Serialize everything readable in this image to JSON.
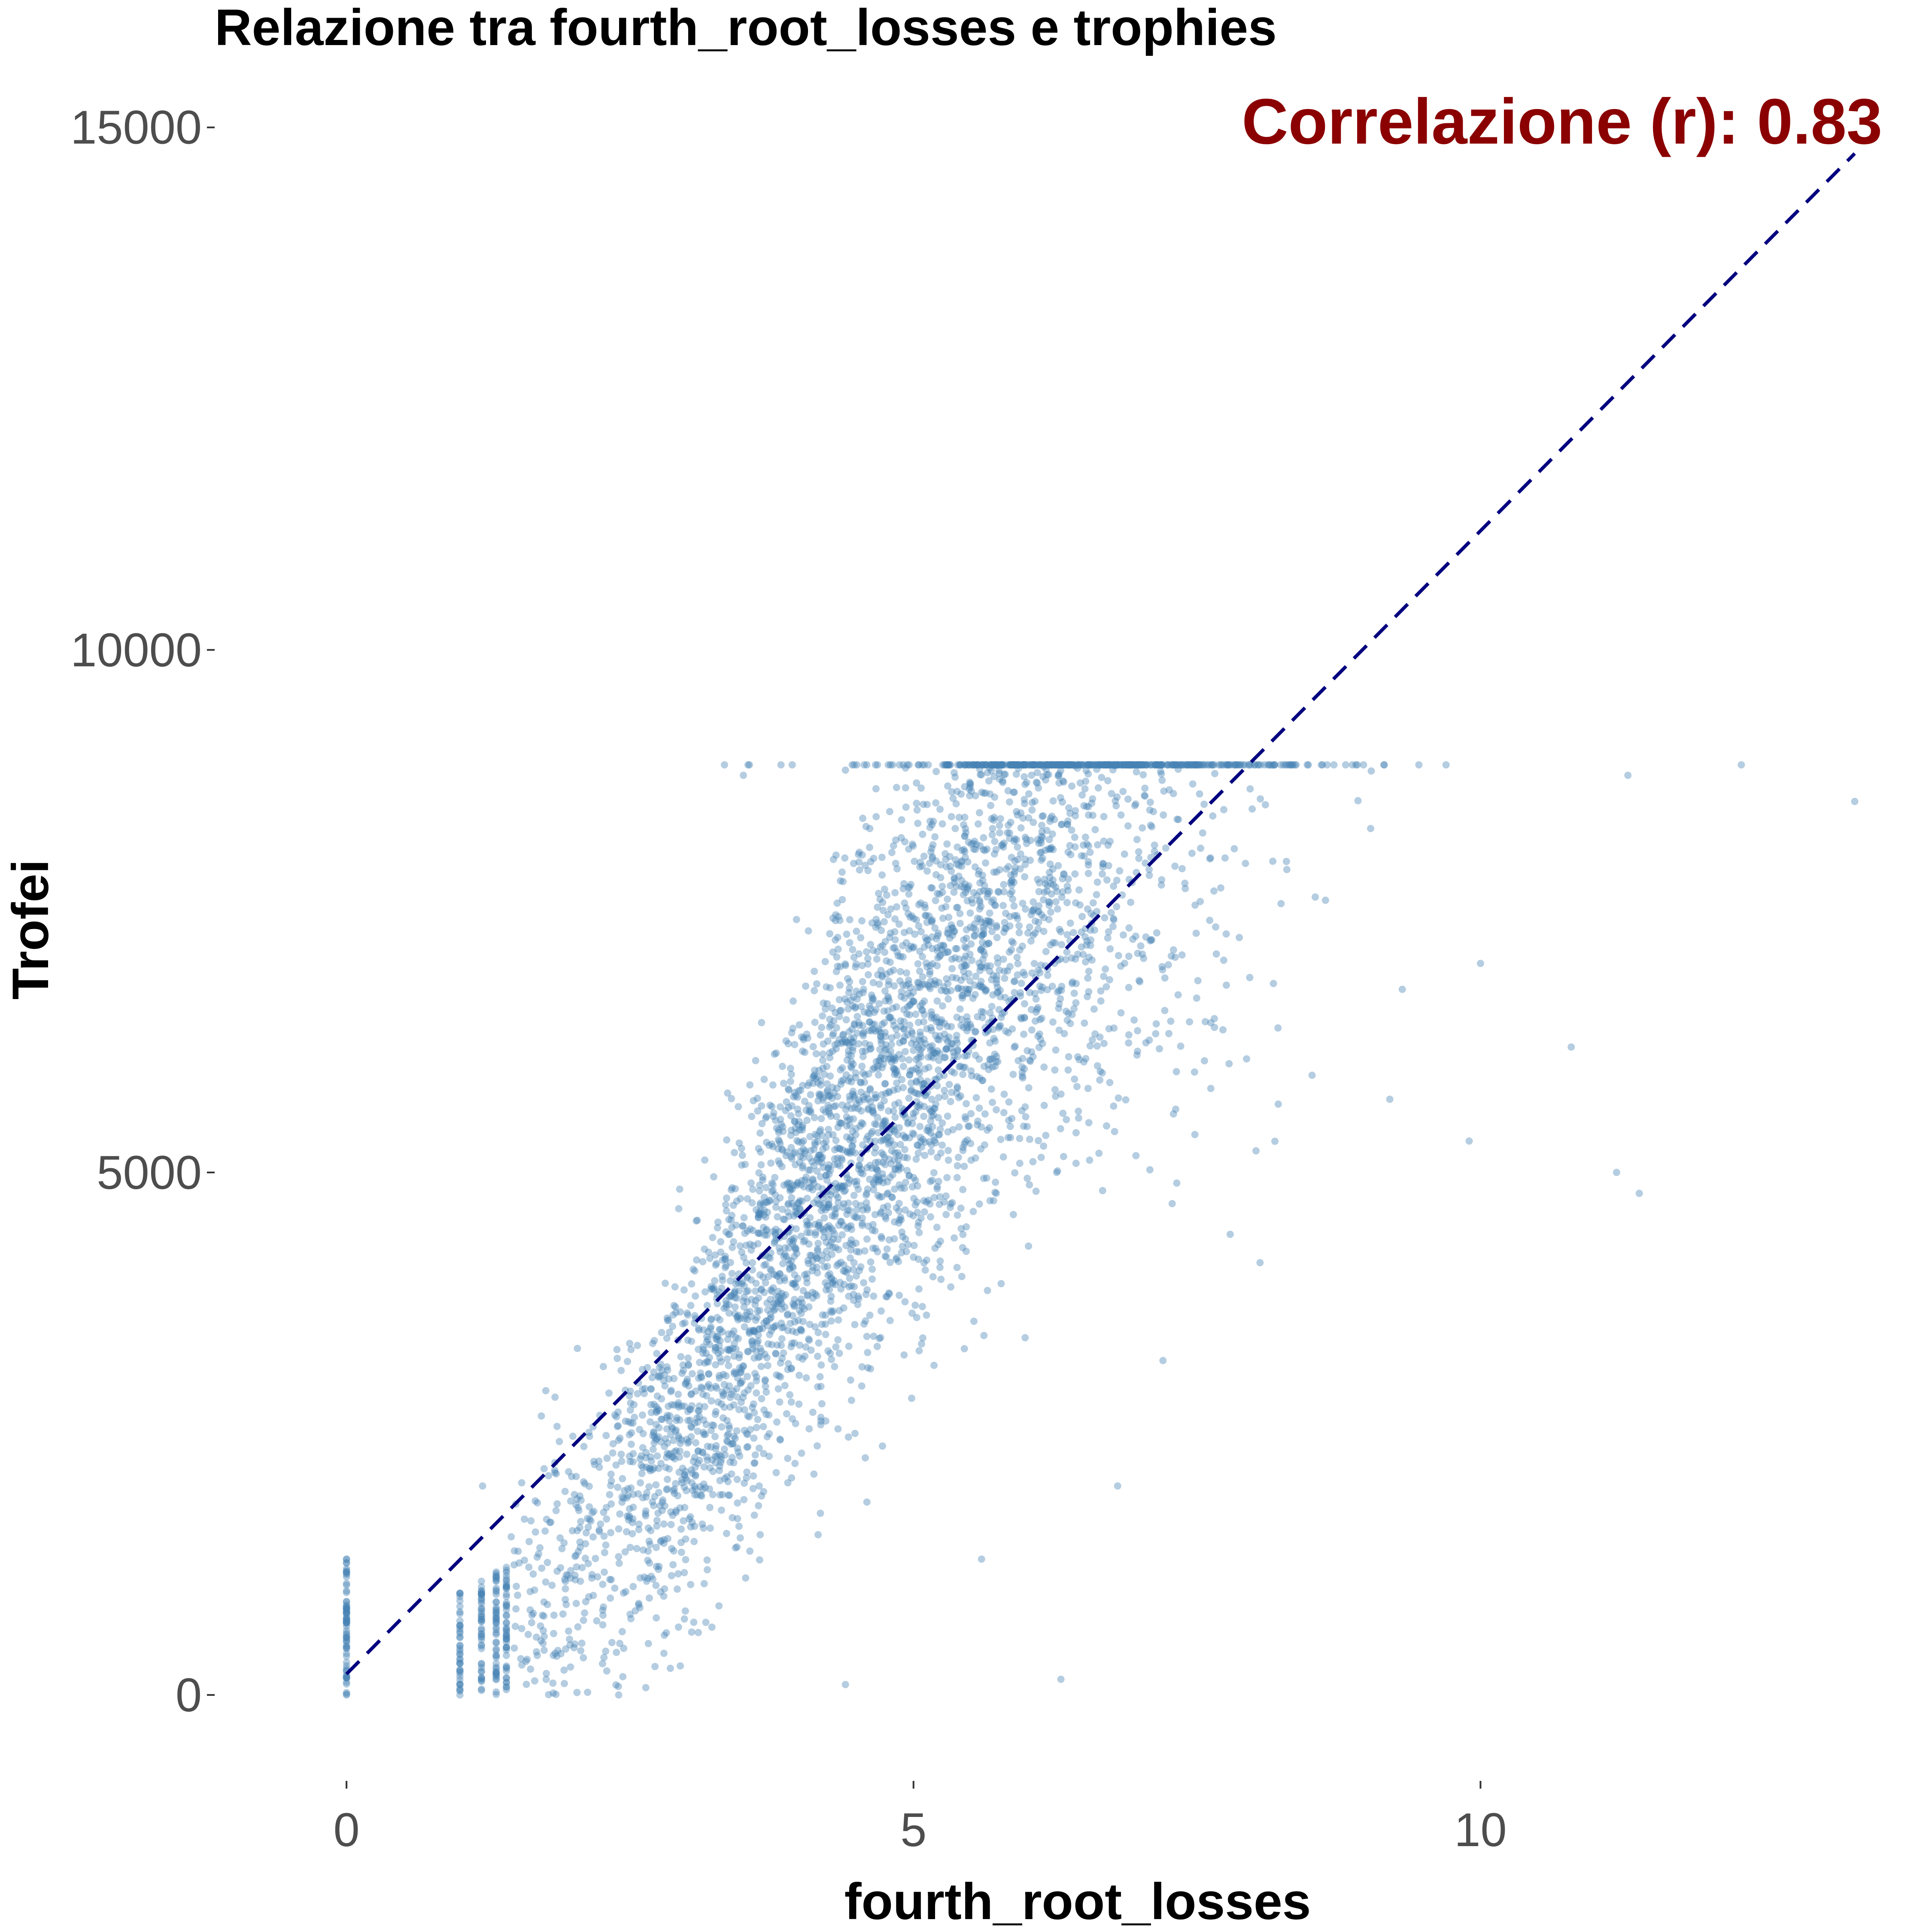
{
  "chart_data": {
    "type": "scatter",
    "title": "Relazione tra fourth_root_losses e trophies",
    "xlabel": "fourth_root_losses",
    "ylabel": "Trofei",
    "xlim": [
      -0.5,
      13.3
    ],
    "ylim": [
      -1200,
      15500
    ],
    "x_ticks": [
      0,
      5,
      10
    ],
    "y_ticks": [
      0,
      5000,
      10000,
      15000
    ],
    "grid": false,
    "legend": "none",
    "annotation": {
      "text": "Correlazione (r): 0.83",
      "color": "#8b0000",
      "anchor_x": 12.9,
      "anchor_y": 15050
    },
    "trend_line": {
      "style": "dashed",
      "color": "#00007f",
      "points": [
        [
          0,
          200
        ],
        [
          13.3,
          14750
        ]
      ]
    },
    "series": [
      {
        "point_color": "#4682b4",
        "point_opacity": 0.4,
        "cap_y": 8900,
        "cluster_center": [
          [
            0.2,
            300
          ],
          [
            1.5,
            900
          ],
          [
            2.3,
            1600
          ],
          [
            3.0,
            2600
          ],
          [
            3.6,
            3800
          ],
          [
            4.3,
            5300
          ],
          [
            5.0,
            6200
          ],
          [
            5.7,
            7400
          ],
          [
            6.5,
            8000
          ],
          [
            7.3,
            8500
          ]
        ],
        "outliers": [
          [
            0.0,
            0
          ],
          [
            0.0,
            1300
          ],
          [
            1.0,
            0
          ],
          [
            1.2,
            2000
          ],
          [
            1.9,
            1400
          ],
          [
            2.4,
            0
          ],
          [
            3.5,
            8800
          ],
          [
            4.4,
            8850
          ],
          [
            4.4,
            100
          ],
          [
            5.6,
            1300
          ],
          [
            6.3,
            150
          ],
          [
            6.8,
            2000
          ],
          [
            7.2,
            3200
          ],
          [
            9.2,
            5700
          ],
          [
            9.9,
            5300
          ],
          [
            10.0,
            7000
          ],
          [
            10.8,
            6200
          ],
          [
            11.2,
            5000
          ],
          [
            11.4,
            4800
          ],
          [
            11.3,
            8800
          ],
          [
            12.3,
            8900
          ],
          [
            13.3,
            8550
          ]
        ]
      }
    ]
  }
}
